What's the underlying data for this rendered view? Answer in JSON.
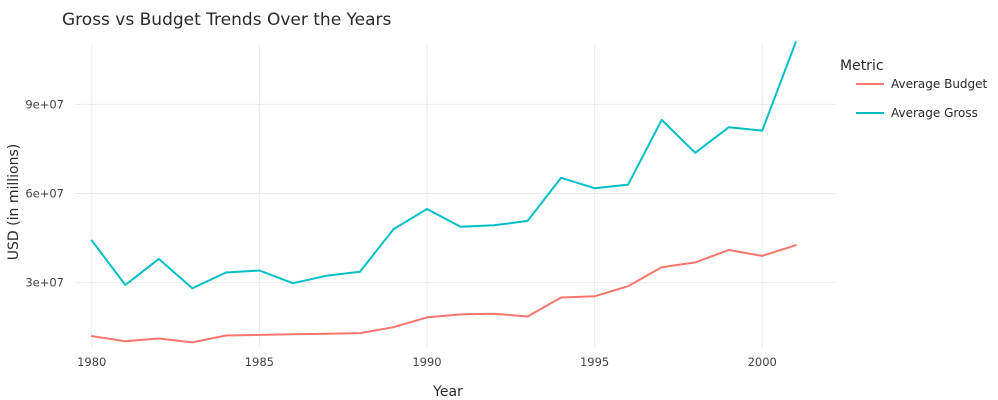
{
  "chart_data": {
    "type": "line",
    "title": "Gross vs Budget Trends Over the Years",
    "xlabel": "Year",
    "ylabel": "USD (in millions)",
    "x": [
      1980,
      1981,
      1982,
      1983,
      1984,
      1985,
      1986,
      1987,
      1988,
      1989,
      1990,
      1991,
      1992,
      1993,
      1994,
      1995,
      1996,
      1997,
      1998,
      1999,
      2000,
      2001
    ],
    "xlim": [
      1979.5,
      2002.2
    ],
    "ylim": [
      8000000,
      110000000
    ],
    "x_ticks": [
      1980,
      1985,
      1990,
      1995,
      2000
    ],
    "x_tick_labels": [
      "1980",
      "1985",
      "1990",
      "1995",
      "2000"
    ],
    "y_ticks": [
      30000000,
      60000000,
      90000000
    ],
    "y_tick_labels": [
      "3e+07",
      "6e+07",
      "9e+07"
    ],
    "grid": true,
    "legend": {
      "title": "Metric",
      "position": "right"
    },
    "series": [
      {
        "name": "Average Budget",
        "color": "#f8766d",
        "values": [
          12000000,
          10300000,
          11200000,
          9900000,
          12200000,
          12400000,
          12600000,
          12800000,
          13000000,
          15000000,
          18300000,
          19300000,
          19500000,
          18600000,
          25000000,
          25400000,
          28800000,
          35200000,
          36800000,
          41000000,
          39000000,
          42600000
        ]
      },
      {
        "name": "Average Gross",
        "color": "#00bfc4",
        "values": [
          44200000,
          29200000,
          38000000,
          28100000,
          33400000,
          34100000,
          29800000,
          32300000,
          33700000,
          48000000,
          54800000,
          48800000,
          49300000,
          50800000,
          65300000,
          61800000,
          63000000,
          84800000,
          73700000,
          82300000,
          81200000,
          111000000
        ]
      }
    ]
  }
}
